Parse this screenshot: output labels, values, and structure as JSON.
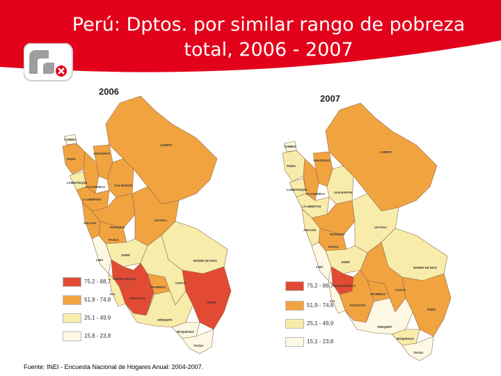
{
  "slide": {
    "title_line1": "Perú: Dptos. por similar rango de pobreza",
    "title_line2": "total, 2006 - 2007",
    "source": "Fuente: INEI - Encuesta Nacional de Hogares Anual: 2004-2007."
  },
  "colors": {
    "header_red": "#e3001b",
    "c1": "#e34a33",
    "c2": "#f1a340",
    "c3": "#f8ecab",
    "c4": "#fdf8e4"
  },
  "legend": [
    {
      "label": "75,2 - 88,7",
      "color": "#e34a33"
    },
    {
      "label": "51,9 - 74,8",
      "color": "#f1a340"
    },
    {
      "label": "25,1 - 49,9",
      "color": "#f8ecab"
    },
    {
      "label": "15,8 - 23,8",
      "color": "#fdf8e4"
    }
  ],
  "legend_2007": [
    {
      "label": "75,2 - 86,7",
      "color": "#e34a33"
    },
    {
      "label": "51,9 - 74,8",
      "color": "#f1a340"
    },
    {
      "label": "25,1 - 49,9",
      "color": "#f8ecab"
    },
    {
      "label": "15,1 - 23,8",
      "color": "#fdf8e4"
    }
  ],
  "maps": [
    {
      "year": "2006",
      "departments": {
        "tumbes": "TUMBES",
        "piura": "PIURA",
        "lambayeque": "LAMBAYEQUE",
        "amazonas": "AMAZONAS",
        "cajamarca": "CAJAMARCA",
        "loreto": "LORETO",
        "san_martin": "SAN MARTIN",
        "la_libertad": "LA LIBERTAD",
        "ancash": "ANCASH",
        "huanuco": "HUANUCO",
        "ucayali": "UCAYALI",
        "pasco": "PASCO",
        "junin": "JUNIN",
        "lima": "LIMA",
        "madre_de_dios": "MADRE DE DIOS",
        "huancavelica": "HUANCAVELICA",
        "ica": "ICA",
        "ayacucho": "AYACUCHO",
        "apurimac": "APURIMAC",
        "cusco": "CUSCO",
        "puno": "PUNO",
        "arequipa": "AREQUIPA",
        "moquegua": "MOQUEGUA",
        "tacna": "TACNA"
      }
    },
    {
      "year": "2007",
      "departments": {
        "tumbes": "TUMBES",
        "piura": "PIURA",
        "lambayeque": "LAMBAYEQUE",
        "amazonas": "AMAZONAS",
        "cajamarca": "CAJAMARCA",
        "loreto": "LORETO",
        "san_martin": "SAN MARTIN",
        "la_libertad": "LA LIBERTAD",
        "ancash": "ANCASH",
        "huanuco": "HUANUCO",
        "ucayali": "UCAYALI",
        "pasco": "PASCO",
        "junin": "JUNIN",
        "lima": "LIMA",
        "madre_de_dios": "MADRE DE DIOS",
        "huancavelica": "HUANCAVELICA",
        "ica": "ICA",
        "ayacucho": "AYACUCHO",
        "apurimac": "APURIMAC",
        "cusco": "CUSCO",
        "puno": "PUNO",
        "arequipa": "AREQUIPA",
        "moquegua": "MOQUEGUA",
        "tacna": "TACNA"
      }
    }
  ]
}
